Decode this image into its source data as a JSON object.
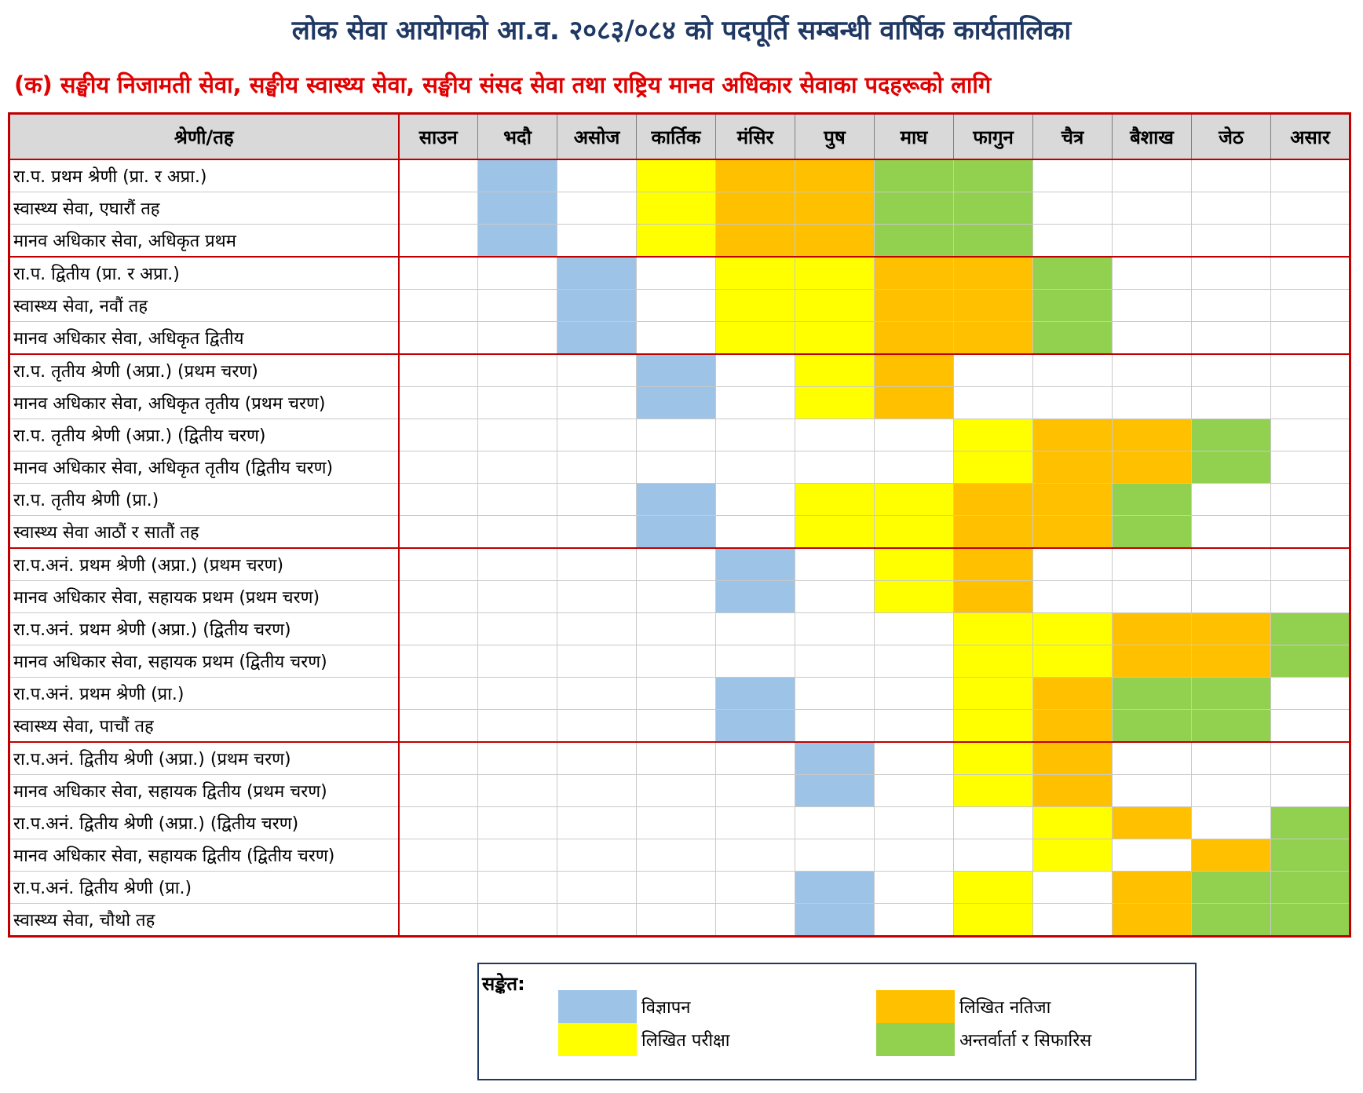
{
  "title": "लोक सेवा आयोगको आ.व. २०८३/०८४ को पदपूर्ति सम्बन्धी वार्षिक कार्यतालिका",
  "subtitle": "(क) सङ्घीय निजामती सेवा, सङ्घीय स्वास्थ्य सेवा, सङ्घीय संसद सेवा तथा राष्ट्रिय मानव अधिकार सेवाका पदहरूको लागि",
  "header": {
    "category": "श्रेणी/तह",
    "months": [
      "साउन",
      "भदौ",
      "असोज",
      "कार्तिक",
      "मंसिर",
      "पुष",
      "माघ",
      "फागुन",
      "चैत्र",
      "बैशाख",
      "जेठ",
      "असार"
    ]
  },
  "colors": {
    "a": "#9dc3e6",
    "e": "#ffff00",
    "r": "#ffc000",
    "i": "#92d050"
  },
  "rows": [
    {
      "label": "रा.प. प्रथम श्रेणी (प्रा. र अप्रा.)",
      "cells": [
        "",
        "a",
        "",
        "e",
        "r",
        "r",
        "i",
        "i",
        "",
        "",
        "",
        ""
      ],
      "group_start": true
    },
    {
      "label": "स्वास्थ्य सेवा, एघारौं तह",
      "cells": [
        "",
        "a",
        "",
        "e",
        "r",
        "r",
        "i",
        "i",
        "",
        "",
        "",
        ""
      ]
    },
    {
      "label": "मानव अधिकार सेवा, अधिकृत प्रथम",
      "cells": [
        "",
        "a",
        "",
        "e",
        "r",
        "r",
        "i",
        "i",
        "",
        "",
        "",
        ""
      ]
    },
    {
      "label": "रा.प. द्वितीय (प्रा. र अप्रा.)",
      "cells": [
        "",
        "",
        "a",
        "",
        "e",
        "e",
        "r",
        "r",
        "i",
        "",
        "",
        ""
      ],
      "group_start": true
    },
    {
      "label": "स्वास्थ्य सेवा, नवौं तह",
      "cells": [
        "",
        "",
        "a",
        "",
        "e",
        "e",
        "r",
        "r",
        "i",
        "",
        "",
        ""
      ]
    },
    {
      "label": "मानव अधिकार सेवा, अधिकृत द्वितीय",
      "cells": [
        "",
        "",
        "a",
        "",
        "e",
        "e",
        "r",
        "r",
        "i",
        "",
        "",
        ""
      ]
    },
    {
      "label": "रा.प. तृतीय श्रेणी (अप्रा.)  (प्रथम चरण)",
      "cells": [
        "",
        "",
        "",
        "a",
        "",
        "e",
        "r",
        "",
        "",
        "",
        "",
        ""
      ],
      "group_start": true
    },
    {
      "label": "मानव अधिकार सेवा, अधिकृत तृतीय (प्रथम चरण)",
      "cells": [
        "",
        "",
        "",
        "a",
        "",
        "e",
        "r",
        "",
        "",
        "",
        "",
        ""
      ]
    },
    {
      "label": "रा.प. तृतीय श्रेणी (अप्रा.)  (द्वितीय चरण)",
      "cells": [
        "",
        "",
        "",
        "",
        "",
        "",
        "",
        "e",
        "r",
        "r",
        "i",
        ""
      ]
    },
    {
      "label": "मानव अधिकार सेवा, अधिकृत तृतीय (द्वितीय चरण)",
      "cells": [
        "",
        "",
        "",
        "",
        "",
        "",
        "",
        "e",
        "r",
        "r",
        "i",
        ""
      ]
    },
    {
      "label": "रा.प. तृतीय श्रेणी (प्रा.)",
      "cells": [
        "",
        "",
        "",
        "a",
        "",
        "e",
        "e",
        "r",
        "r",
        "i",
        "",
        ""
      ]
    },
    {
      "label": "स्वास्थ्य सेवा आठौं र सातौं तह",
      "cells": [
        "",
        "",
        "",
        "a",
        "",
        "e",
        "e",
        "r",
        "r",
        "i",
        "",
        ""
      ]
    },
    {
      "label": "रा.प.अनं. प्रथम श्रेणी (अप्रा.) (प्रथम चरण)",
      "cells": [
        "",
        "",
        "",
        "",
        "a",
        "",
        "e",
        "r",
        "",
        "",
        "",
        ""
      ],
      "group_start": true
    },
    {
      "label": "मानव अधिकार सेवा, सहायक प्रथम (प्रथम चरण)",
      "cells": [
        "",
        "",
        "",
        "",
        "a",
        "",
        "e",
        "r",
        "",
        "",
        "",
        ""
      ]
    },
    {
      "label": "रा.प.अनं. प्रथम श्रेणी (अप्रा.) (द्वितीय चरण)",
      "cells": [
        "",
        "",
        "",
        "",
        "",
        "",
        "",
        "e",
        "e",
        "r",
        "r",
        "i"
      ]
    },
    {
      "label": "मानव अधिकार सेवा, सहायक प्रथम (द्वितीय चरण)",
      "cells": [
        "",
        "",
        "",
        "",
        "",
        "",
        "",
        "e",
        "e",
        "r",
        "r",
        "i"
      ]
    },
    {
      "label": "रा.प.अनं. प्रथम श्रेणी (प्रा.)",
      "cells": [
        "",
        "",
        "",
        "",
        "a",
        "",
        "",
        "e",
        "r",
        "i",
        "i",
        ""
      ]
    },
    {
      "label": "स्वास्थ्य सेवा, पाचौं तह",
      "cells": [
        "",
        "",
        "",
        "",
        "a",
        "",
        "",
        "e",
        "r",
        "i",
        "i",
        ""
      ]
    },
    {
      "label": "रा.प.अनं. द्वितीय श्रेणी (अप्रा.) (प्रथम चरण)",
      "cells": [
        "",
        "",
        "",
        "",
        "",
        "a",
        "",
        "e",
        "r",
        "",
        "",
        ""
      ],
      "group_start": true
    },
    {
      "label": "मानव अधिकार सेवा, सहायक द्वितीय (प्रथम चरण)",
      "cells": [
        "",
        "",
        "",
        "",
        "",
        "a",
        "",
        "e",
        "r",
        "",
        "",
        ""
      ]
    },
    {
      "label": "रा.प.अनं. द्वितीय श्रेणी (अप्रा.)  (द्वितीय चरण)",
      "cells": [
        "",
        "",
        "",
        "",
        "",
        "",
        "",
        "",
        "e",
        "r",
        "",
        "i"
      ]
    },
    {
      "label": "मानव अधिकार सेवा, सहायक द्वितीय (द्वितीय चरण)",
      "cells": [
        "",
        "",
        "",
        "",
        "",
        "",
        "",
        "",
        "e",
        "",
        "r",
        "i"
      ]
    },
    {
      "label": "रा.प.अनं. द्वितीय श्रेणी (प्रा.)",
      "cells": [
        "",
        "",
        "",
        "",
        "",
        "a",
        "",
        "e",
        "",
        "r",
        "i",
        "i"
      ]
    },
    {
      "label": "स्वास्थ्य सेवा, चौथो तह",
      "cells": [
        "",
        "",
        "",
        "",
        "",
        "a",
        "",
        "e",
        "",
        "r",
        "i",
        "i"
      ]
    }
  ],
  "legend": {
    "title": "सङ्केत:",
    "items": [
      {
        "key": "a",
        "label": "विज्ञापन"
      },
      {
        "key": "e",
        "label": "लिखित परीक्षा"
      },
      {
        "key": "r",
        "label": "लिखित नतिजा"
      },
      {
        "key": "i",
        "label": "अन्तर्वार्ता र सिफारिस"
      }
    ]
  }
}
